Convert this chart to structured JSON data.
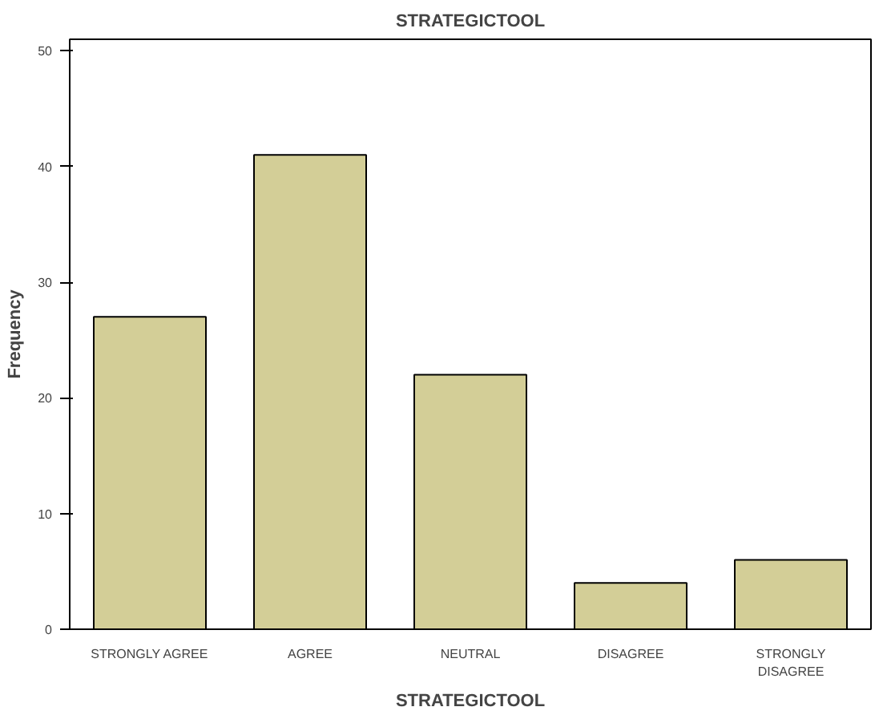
{
  "chart_data": {
    "type": "bar",
    "title": "STRATEGICTOOL",
    "xlabel": "STRATEGICTOOL",
    "ylabel": "Frequency",
    "categories": [
      "STRONGLY AGREE",
      "AGREE",
      "NEUTRAL",
      "DISAGREE",
      "STRONGLY DISAGREE"
    ],
    "values": [
      27,
      41,
      22,
      4,
      6
    ],
    "color": "#d3ce97",
    "ylim": [
      0,
      51
    ],
    "yticks": [
      0,
      10,
      20,
      30,
      40,
      50
    ],
    "grid": false
  }
}
